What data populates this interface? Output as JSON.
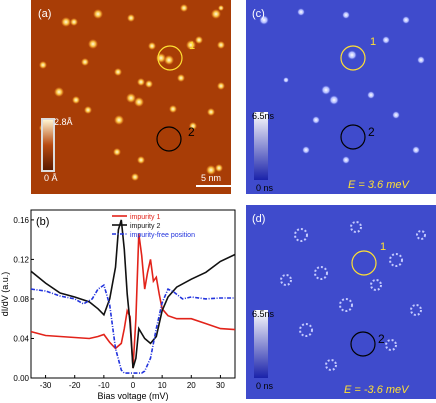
{
  "panel_a": {
    "label": "(a)",
    "cbar_top": "2.8Å",
    "cbar_bottom": "0 Å",
    "scale": "5 nm",
    "marker1": "1",
    "marker2": "2"
  },
  "panel_c": {
    "label": "(c)",
    "cbar_top": "6.5ns",
    "cbar_bottom": "0 ns",
    "energy": "E = 3.6 meV",
    "marker1": "1",
    "marker2": "2"
  },
  "panel_d": {
    "label": "(d)",
    "cbar_top": "6.5ns",
    "cbar_bottom": "0 ns",
    "energy": "E = -3.6 meV",
    "marker1": "1",
    "marker2": "2"
  },
  "colors": {
    "stm_bg": "#a83d06",
    "map_bg": "#3f4bcc",
    "marker_yellow": "#ffe033",
    "series_red": "#e2231a",
    "series_black": "#111111",
    "series_blue": "#2233dd"
  },
  "chart_data": {
    "type": "line",
    "label": "(b)",
    "xlabel": "Bias voltage (mV)",
    "ylabel": "dI/dV (a.u.)",
    "xlim": [
      -35,
      35
    ],
    "ylim": [
      0,
      0.17
    ],
    "xticks": [
      -30,
      -20,
      -10,
      0,
      10,
      20,
      30
    ],
    "yticks": [
      0.0,
      0.04,
      0.08,
      0.12,
      0.16
    ],
    "xticklabels": [
      "-30",
      "-20",
      "-10",
      "0",
      "10",
      "20",
      "30"
    ],
    "yticklabels": [
      "0.00",
      "0.04",
      "0.08",
      "0.12",
      "0.16"
    ],
    "legend_position": "top-right",
    "series": [
      {
        "name": "impurity 1",
        "color": "#e2231a",
        "x": [
          -35,
          -30,
          -25,
          -20,
          -15,
          -12,
          -10,
          -8,
          -6,
          -4,
          -3,
          -2,
          -1,
          0,
          1,
          2,
          3,
          4,
          5,
          6,
          7,
          8,
          9,
          10,
          12,
          15,
          20,
          25,
          30,
          35
        ],
        "y": [
          0.047,
          0.043,
          0.042,
          0.041,
          0.04,
          0.042,
          0.044,
          0.036,
          0.03,
          0.035,
          0.05,
          0.068,
          0.062,
          0.01,
          0.06,
          0.146,
          0.124,
          0.09,
          0.107,
          0.12,
          0.098,
          0.102,
          0.085,
          0.07,
          0.063,
          0.06,
          0.06,
          0.055,
          0.05,
          0.049
        ]
      },
      {
        "name": "impurity 2",
        "color": "#111111",
        "x": [
          -35,
          -30,
          -25,
          -20,
          -15,
          -12,
          -10,
          -8,
          -6,
          -5,
          -4,
          -3,
          -2,
          -1,
          0,
          1,
          2,
          3,
          4,
          6,
          8,
          10,
          12,
          15,
          20,
          25,
          30,
          35
        ],
        "y": [
          0.108,
          0.096,
          0.086,
          0.082,
          0.077,
          0.07,
          0.064,
          0.08,
          0.112,
          0.15,
          0.16,
          0.13,
          0.085,
          0.055,
          0.01,
          0.02,
          0.05,
          0.045,
          0.04,
          0.035,
          0.042,
          0.068,
          0.082,
          0.092,
          0.1,
          0.107,
          0.118,
          0.125
        ]
      },
      {
        "name": "impurity-free position",
        "color": "#2233dd",
        "x": [
          -35,
          -30,
          -25,
          -20,
          -17,
          -14,
          -12,
          -10,
          -8,
          -6,
          -4,
          -3,
          -2,
          -1,
          0,
          1,
          2,
          3,
          4,
          6,
          8,
          10,
          12,
          14,
          17,
          20,
          25,
          30,
          35
        ],
        "y": [
          0.09,
          0.088,
          0.083,
          0.08,
          0.075,
          0.08,
          0.09,
          0.094,
          0.074,
          0.03,
          0.008,
          0.005,
          0.005,
          0.005,
          0.005,
          0.005,
          0.005,
          0.005,
          0.007,
          0.02,
          0.05,
          0.076,
          0.09,
          0.087,
          0.08,
          0.082,
          0.08,
          0.081,
          0.081
        ]
      }
    ]
  }
}
